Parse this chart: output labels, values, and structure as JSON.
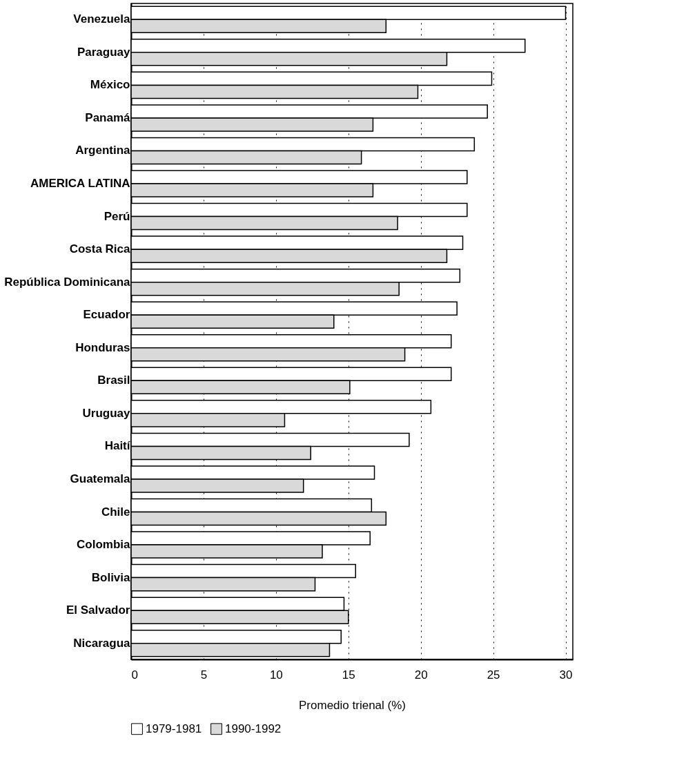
{
  "chart_data": {
    "type": "bar",
    "orientation": "horizontal",
    "categories": [
      "Venezuela",
      "Paraguay",
      "México",
      "Panamá",
      "Argentina",
      "AMERICA LATINA",
      "Perú",
      "Costa Rica",
      "República Dominicana",
      "Ecuador",
      "Honduras",
      "Brasil",
      "Uruguay",
      "Haití",
      "Guatemala",
      "Chile",
      "Colombia",
      "Bolivia",
      "El Salvador",
      "Nicaragua"
    ],
    "series": [
      {
        "name": "1979-1981",
        "color": "#ffffff",
        "values": [
          30.0,
          27.2,
          24.9,
          24.6,
          23.7,
          23.2,
          23.2,
          22.9,
          22.7,
          22.5,
          22.1,
          22.1,
          20.7,
          19.2,
          16.8,
          16.6,
          16.5,
          15.5,
          14.7,
          14.5
        ]
      },
      {
        "name": "1990-1992",
        "color": "#d9d9d9",
        "values": [
          17.6,
          21.8,
          19.8,
          16.7,
          15.9,
          16.7,
          18.4,
          21.8,
          18.5,
          14.0,
          18.9,
          15.1,
          10.6,
          12.4,
          11.9,
          17.6,
          13.2,
          12.7,
          15.0,
          13.7
        ]
      }
    ],
    "xlabel": "Promedio trienal (%)",
    "xlim": [
      0,
      30.5
    ],
    "xticks": [
      0,
      5,
      10,
      15,
      20,
      25,
      30
    ],
    "grid": "x",
    "legend": "bottom"
  }
}
